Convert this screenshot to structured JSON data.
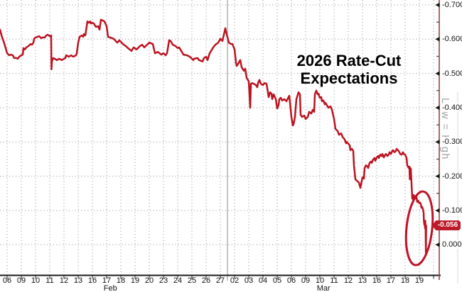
{
  "page": {
    "background": "#ffffff"
  },
  "colors": {
    "line": "#bc1320",
    "ellipse": "#c01328",
    "axis_red": "#9a4343",
    "badge_bg": "#be1b29",
    "badge_text": "#ffffff",
    "grid": "#9e9e9e",
    "separator": "#8c8c8c",
    "xaxis_line": "#1a1a1a",
    "tick_text": "#111111",
    "marker": "#111111",
    "side_text": "#a0a0a0",
    "title_text": "#000000"
  },
  "chart_data": {
    "type": "line",
    "title": "2026 Rate-Cut Expectations",
    "title_lines": [
      "2026 Rate-Cut",
      "Expectations"
    ],
    "legend_position": "none",
    "grid": {
      "horizontal_dotted": true,
      "vertical_dotted": true,
      "month_separator_after_idx": 15.5
    },
    "y_axis": {
      "side": "right",
      "min": -0.7,
      "max": 0.0,
      "step": 0.1,
      "note": "negative values at top, zero at bottom",
      "tick_values": [
        -0.7,
        -0.6,
        -0.5,
        -0.4,
        -0.3,
        -0.2,
        -0.1,
        0
      ],
      "tick_labels": [
        "-0.700",
        "-0.600",
        "-0.500",
        "-0.400",
        "-0.300",
        "-0.200",
        "-0.100",
        "0.000"
      ],
      "minor_tick_values": [
        -0.65,
        -0.55,
        -0.45,
        -0.35,
        -0.25,
        -0.15,
        -0.05
      ],
      "last_value": -0.056,
      "last_label": "-0.056"
    },
    "x_axis": {
      "groups": [
        {
          "month_label": "Feb 2026",
          "day_labels": [
            "06",
            "09",
            "10",
            "11",
            "12",
            "13",
            "16",
            "17",
            "18",
            "19",
            "20",
            "23",
            "24",
            "25",
            "26",
            "27"
          ]
        },
        {
          "month_label": "Mar 2026",
          "day_labels": [
            "02",
            "03",
            "04",
            "05",
            "06",
            "09",
            "10",
            "11",
            "12",
            "13",
            "16",
            "17",
            "18",
            "19"
          ]
        }
      ]
    },
    "annotations": {
      "side_label": "Low = High",
      "ellipse": {
        "center_idx": 29.0,
        "center_value": -0.048,
        "radius_idx": 0.9,
        "radius_value": 0.108,
        "rotate_deg": 6
      }
    },
    "series": [
      {
        "name": "2026 rate-cut expectations",
        "color": "#bc1320",
        "points": [
          [
            -0.5,
            -0.628
          ],
          [
            -0.35,
            -0.605
          ],
          [
            -0.25,
            -0.594
          ],
          [
            -0.1,
            -0.574
          ],
          [
            0,
            -0.559
          ],
          [
            0.15,
            -0.553
          ],
          [
            0.25,
            -0.555
          ],
          [
            0.4,
            -0.553
          ],
          [
            0.5,
            -0.545
          ],
          [
            0.65,
            -0.545
          ],
          [
            0.75,
            -0.543
          ],
          [
            0.85,
            -0.549
          ],
          [
            1,
            -0.553
          ],
          [
            1.1,
            -0.555
          ],
          [
            1.15,
            -0.574
          ],
          [
            1.25,
            -0.57
          ],
          [
            1.35,
            -0.576
          ],
          [
            1.5,
            -0.58
          ],
          [
            1.65,
            -0.586
          ],
          [
            1.75,
            -0.584
          ],
          [
            1.85,
            -0.59
          ],
          [
            1.9,
            -0.601
          ],
          [
            2,
            -0.605
          ],
          [
            2.15,
            -0.607
          ],
          [
            2.25,
            -0.609
          ],
          [
            2.4,
            -0.603
          ],
          [
            2.5,
            -0.605
          ],
          [
            2.65,
            -0.605
          ],
          [
            2.75,
            -0.611
          ],
          [
            2.85,
            -0.613
          ],
          [
            3,
            -0.609
          ],
          [
            3.1,
            -0.611
          ],
          [
            3.12,
            -0.512
          ],
          [
            3.15,
            -0.535
          ],
          [
            3.25,
            -0.545
          ],
          [
            3.35,
            -0.543
          ],
          [
            3.5,
            -0.539
          ],
          [
            3.65,
            -0.543
          ],
          [
            3.85,
            -0.539
          ],
          [
            4,
            -0.543
          ],
          [
            4.1,
            -0.545
          ],
          [
            4.15,
            -0.553
          ],
          [
            4.35,
            -0.549
          ],
          [
            4.5,
            -0.553
          ],
          [
            4.65,
            -0.549
          ],
          [
            4.85,
            -0.553
          ],
          [
            4.9,
            -0.559
          ],
          [
            5,
            -0.59
          ],
          [
            5.1,
            -0.607
          ],
          [
            5.25,
            -0.611
          ],
          [
            5.35,
            -0.607
          ],
          [
            5.4,
            -0.615
          ],
          [
            5.5,
            -0.611
          ],
          [
            5.6,
            -0.638
          ],
          [
            5.65,
            -0.652
          ],
          [
            5.75,
            -0.648
          ],
          [
            5.85,
            -0.652
          ],
          [
            5.9,
            -0.646
          ],
          [
            6,
            -0.648
          ],
          [
            6.1,
            -0.646
          ],
          [
            6.25,
            -0.636
          ],
          [
            6.4,
            -0.638
          ],
          [
            6.5,
            -0.628
          ],
          [
            6.6,
            -0.657
          ],
          [
            6.85,
            -0.652
          ],
          [
            7,
            -0.638
          ],
          [
            7.1,
            -0.607
          ],
          [
            7.25,
            -0.605
          ],
          [
            7.5,
            -0.601
          ],
          [
            7.75,
            -0.59
          ],
          [
            7.9,
            -0.597
          ],
          [
            8.15,
            -0.586
          ],
          [
            8.35,
            -0.58
          ],
          [
            8.5,
            -0.574
          ],
          [
            8.75,
            -0.566
          ],
          [
            8.9,
            -0.576
          ],
          [
            9.1,
            -0.57
          ],
          [
            9.35,
            -0.58
          ],
          [
            9.5,
            -0.584
          ],
          [
            9.65,
            -0.576
          ],
          [
            9.9,
            -0.586
          ],
          [
            10,
            -0.59
          ],
          [
            10.25,
            -0.586
          ],
          [
            10.4,
            -0.559
          ],
          [
            10.6,
            -0.563
          ],
          [
            10.85,
            -0.555
          ],
          [
            11,
            -0.559
          ],
          [
            11.15,
            -0.553
          ],
          [
            11.25,
            -0.559
          ],
          [
            11.4,
            -0.597
          ],
          [
            11.5,
            -0.595
          ],
          [
            11.65,
            -0.584
          ],
          [
            11.85,
            -0.58
          ],
          [
            12,
            -0.574
          ],
          [
            12.1,
            -0.576
          ],
          [
            12.35,
            -0.559
          ],
          [
            12.4,
            -0.555
          ],
          [
            12.65,
            -0.553
          ],
          [
            12.85,
            -0.549
          ],
          [
            13.1,
            -0.539
          ],
          [
            13.15,
            -0.543
          ],
          [
            13.4,
            -0.545
          ],
          [
            13.5,
            -0.539
          ],
          [
            13.75,
            -0.535
          ],
          [
            13.85,
            -0.545
          ],
          [
            14,
            -0.549
          ],
          [
            14.1,
            -0.539
          ],
          [
            14.25,
            -0.559
          ],
          [
            14.35,
            -0.566
          ],
          [
            14.5,
            -0.576
          ],
          [
            14.65,
            -0.584
          ],
          [
            14.85,
            -0.59
          ],
          [
            15,
            -0.601
          ],
          [
            15.15,
            -0.595
          ],
          [
            15.35,
            -0.632
          ],
          [
            15.4,
            -0.622
          ],
          [
            15.6,
            -0.59
          ],
          [
            15.75,
            -0.586
          ],
          [
            15.85,
            -0.586
          ],
          [
            16,
            -0.57
          ],
          [
            16.1,
            -0.532
          ],
          [
            16.15,
            -0.522
          ],
          [
            16.25,
            -0.528
          ],
          [
            16.4,
            -0.539
          ],
          [
            16.5,
            -0.518
          ],
          [
            16.65,
            -0.508
          ],
          [
            16.75,
            -0.514
          ],
          [
            16.85,
            -0.487
          ],
          [
            17,
            -0.477
          ],
          [
            17.1,
            -0.4
          ],
          [
            17.15,
            -0.47
          ],
          [
            17.25,
            -0.472
          ],
          [
            17.35,
            -0.47
          ],
          [
            17.5,
            -0.466
          ],
          [
            17.6,
            -0.46
          ],
          [
            17.65,
            -0.472
          ],
          [
            17.75,
            -0.481
          ],
          [
            17.85,
            -0.47
          ],
          [
            18,
            -0.466
          ],
          [
            18.1,
            -0.472
          ],
          [
            18.25,
            -0.47
          ],
          [
            18.4,
            -0.431
          ],
          [
            18.5,
            -0.445
          ],
          [
            18.6,
            -0.441
          ],
          [
            18.65,
            -0.425
          ],
          [
            18.75,
            -0.439
          ],
          [
            18.9,
            -0.425
          ],
          [
            19,
            -0.398
          ],
          [
            19.1,
            -0.408
          ],
          [
            19.15,
            -0.425
          ],
          [
            19.25,
            -0.429
          ],
          [
            19.35,
            -0.421
          ],
          [
            19.5,
            -0.425
          ],
          [
            19.65,
            -0.419
          ],
          [
            19.85,
            -0.435
          ],
          [
            20,
            -0.373
          ],
          [
            20.1,
            -0.348
          ],
          [
            20.15,
            -0.352
          ],
          [
            20.25,
            -0.373
          ],
          [
            20.35,
            -0.425
          ],
          [
            20.5,
            -0.445
          ],
          [
            20.6,
            -0.439
          ],
          [
            20.65,
            -0.379
          ],
          [
            20.75,
            -0.373
          ],
          [
            20.9,
            -0.377
          ],
          [
            21,
            -0.367
          ],
          [
            21.15,
            -0.373
          ],
          [
            21.25,
            -0.388
          ],
          [
            21.4,
            -0.383
          ],
          [
            21.5,
            -0.394
          ],
          [
            21.6,
            -0.388
          ],
          [
            21.65,
            -0.439
          ],
          [
            21.75,
            -0.45
          ],
          [
            21.85,
            -0.439
          ],
          [
            21.9,
            -0.441
          ],
          [
            22,
            -0.429
          ],
          [
            22.1,
            -0.431
          ],
          [
            22.15,
            -0.419
          ],
          [
            22.25,
            -0.421
          ],
          [
            22.35,
            -0.41
          ],
          [
            22.4,
            -0.414
          ],
          [
            22.6,
            -0.4
          ],
          [
            22.75,
            -0.404
          ],
          [
            22.85,
            -0.394
          ],
          [
            23,
            -0.367
          ],
          [
            23.1,
            -0.338
          ],
          [
            23.25,
            -0.332
          ],
          [
            23.35,
            -0.321
          ],
          [
            23.5,
            -0.325
          ],
          [
            23.6,
            -0.315
          ],
          [
            23.75,
            -0.307
          ],
          [
            23.85,
            -0.296
          ],
          [
            23.9,
            -0.3
          ],
          [
            24.1,
            -0.29
          ],
          [
            24.15,
            -0.276
          ],
          [
            24.25,
            -0.28
          ],
          [
            24.35,
            -0.274
          ],
          [
            24.4,
            -0.232
          ],
          [
            24.5,
            -0.191
          ],
          [
            24.6,
            -0.187
          ],
          [
            24.75,
            -0.181
          ],
          [
            24.85,
            -0.166
          ],
          [
            25,
            -0.197
          ],
          [
            25.1,
            -0.193
          ],
          [
            25.15,
            -0.224
          ],
          [
            25.25,
            -0.232
          ],
          [
            25.35,
            -0.228
          ],
          [
            25.4,
            -0.224
          ],
          [
            25.5,
            -0.239
          ],
          [
            25.6,
            -0.243
          ],
          [
            25.65,
            -0.239
          ],
          [
            25.75,
            -0.249
          ],
          [
            25.85,
            -0.253
          ],
          [
            25.9,
            -0.245
          ],
          [
            26,
            -0.255
          ],
          [
            26.1,
            -0.259
          ],
          [
            26.15,
            -0.253
          ],
          [
            26.25,
            -0.263
          ],
          [
            26.35,
            -0.259
          ],
          [
            26.4,
            -0.265
          ],
          [
            26.5,
            -0.255
          ],
          [
            26.6,
            -0.263
          ],
          [
            26.65,
            -0.265
          ],
          [
            26.75,
            -0.259
          ],
          [
            26.85,
            -0.263
          ],
          [
            26.9,
            -0.27
          ],
          [
            27,
            -0.265
          ],
          [
            27.1,
            -0.274
          ],
          [
            27.15,
            -0.276
          ],
          [
            27.25,
            -0.27
          ],
          [
            27.35,
            -0.274
          ],
          [
            27.4,
            -0.28
          ],
          [
            27.5,
            -0.276
          ],
          [
            27.6,
            -0.27
          ],
          [
            27.65,
            -0.265
          ],
          [
            27.75,
            -0.263
          ],
          [
            27.85,
            -0.27
          ],
          [
            27.9,
            -0.265
          ],
          [
            28,
            -0.263
          ],
          [
            28.1,
            -0.253
          ],
          [
            28.15,
            -0.232
          ],
          [
            28.25,
            -0.224
          ],
          [
            28.3,
            -0.228
          ],
          [
            28.33,
            -0.191
          ],
          [
            28.36,
            -0.224
          ],
          [
            28.4,
            -0.222
          ],
          [
            28.5,
            -0.135
          ],
          [
            28.55,
            -0.133
          ],
          [
            28.6,
            -0.145
          ],
          [
            28.65,
            -0.141
          ],
          [
            28.7,
            -0.137
          ],
          [
            28.75,
            -0.135
          ],
          [
            28.8,
            -0.139
          ],
          [
            28.85,
            -0.125
          ],
          [
            28.9,
            -0.129
          ],
          [
            29,
            -0.121
          ],
          [
            29.05,
            -0.123
          ],
          [
            29.1,
            -0.119
          ],
          [
            29.15,
            -0.108
          ],
          [
            29.2,
            -0.11
          ],
          [
            29.25,
            -0.104
          ],
          [
            29.3,
            -0.094
          ],
          [
            29.32,
            -0.069
          ],
          [
            29.35,
            -0.059
          ],
          [
            29.38,
            -0.063
          ],
          [
            29.4,
            -0.048
          ],
          [
            29.42,
            -0.07
          ],
          [
            29.44,
            -0.046
          ],
          [
            29.46,
            0.025
          ],
          [
            29.48,
            -0.056
          ]
        ]
      }
    ]
  }
}
